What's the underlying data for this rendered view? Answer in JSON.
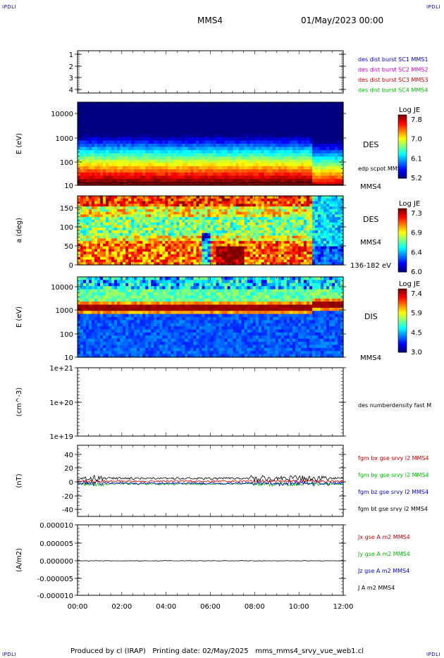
{
  "corners": {
    "tl": "IPDLI",
    "tr": "IPDLI",
    "bl": "IPDLI",
    "br": "IPDLI"
  },
  "header": {
    "mission": "MMS4",
    "date": "01/May/2023 00:00"
  },
  "footer": "Produced by cl (IRAP)   Printing date: 02/May/2025   mms_mms4_srvy_vue_web1.cl",
  "colors": {
    "mms1": "#0000cc",
    "mms2": "#cc00cc",
    "mms3": "#cc0000",
    "mms4": "#00bb00",
    "black": "#000000"
  },
  "chart_data": [
    {
      "id": "burst",
      "type": "line",
      "x_ticks": [],
      "ylim": [
        0.5,
        4.5
      ],
      "y_ticks": [
        "1",
        "2",
        "3",
        "4"
      ],
      "ylabel": "",
      "legend": [
        {
          "text": "des dist burst SC1 MMS1",
          "color": "#0000cc"
        },
        {
          "text": "des dist burst SC2 MMS2",
          "color": "#cc00cc"
        },
        {
          "text": "des dist burst SC3 MMS3",
          "color": "#cc0000"
        },
        {
          "text": "des dist burst SC4 MMS4",
          "color": "#00bb00"
        }
      ]
    },
    {
      "id": "des_energy",
      "type": "heatmap",
      "ylabel": "E (eV)",
      "yscale": "log",
      "ylim": [
        10,
        30000
      ],
      "y_ticks": [
        "10000",
        "1000",
        "100",
        "10"
      ],
      "right_labels": [
        "DES",
        "edp scpot MMS4",
        "MMS4"
      ],
      "colorbar": {
        "title": "Log JE",
        "ticks": [
          "7.8",
          "7.0",
          "6.1",
          "5.2"
        ]
      }
    },
    {
      "id": "des_pitch",
      "type": "heatmap",
      "ylabel": "a (deg)",
      "ylim": [
        0,
        180
      ],
      "y_ticks": [
        "150",
        "100",
        "50",
        "0"
      ],
      "right_labels": [
        "DES",
        "MMS4",
        "136-182 eV"
      ],
      "colorbar": {
        "title": "Log JE",
        "ticks": [
          "7.3",
          "6.9",
          "6.4",
          "6.0"
        ]
      }
    },
    {
      "id": "dis_energy",
      "type": "heatmap",
      "ylabel": "E (eV)",
      "yscale": "log",
      "ylim": [
        10,
        30000
      ],
      "y_ticks": [
        "10000",
        "1000",
        "100",
        "10"
      ],
      "right_labels": [
        "DIS",
        "MMS4"
      ],
      "colorbar": {
        "title": "Log JE",
        "ticks": [
          "7.4",
          "5.9",
          "4.5",
          "3.0"
        ]
      }
    },
    {
      "id": "density",
      "type": "line",
      "ylabel": "(cm^-3)",
      "yscale": "log",
      "y_ticks": [
        "1e+21",
        "1e+20",
        "1e+19"
      ],
      "legend": [
        {
          "text": "des numberdensity fast M",
          "color": "#000000"
        }
      ]
    },
    {
      "id": "fgm",
      "type": "line",
      "ylabel": "(nT)",
      "ylim": [
        -50,
        50
      ],
      "y_ticks": [
        "40",
        "20",
        "0",
        "-20",
        "-40"
      ],
      "legend": [
        {
          "text": "fgm bx gse srvy l2 MMS4",
          "color": "#cc0000"
        },
        {
          "text": "fgm by gse srvy l2 MMS4",
          "color": "#00bb00"
        },
        {
          "text": "fgm bz gse srvy l2 MMS4",
          "color": "#0000cc"
        },
        {
          "text": "fgm bt gse srvy l2 MMS4",
          "color": "#000000"
        }
      ]
    },
    {
      "id": "current",
      "type": "line",
      "ylabel": "(A/m2)",
      "ylim": [
        -1e-05,
        1e-05
      ],
      "y_ticks": [
        "0.000010",
        "0.000005",
        "0.000000",
        "-0.000005",
        "-0.000010"
      ],
      "legend": [
        {
          "text": "Jx gse A m2 MMS4",
          "color": "#cc0000"
        },
        {
          "text": "Jy gse A m2 MMS4",
          "color": "#00bb00"
        },
        {
          "text": "Jz gse A m2 MMS4",
          "color": "#0000cc"
        },
        {
          "text": "J A m2 MMS4",
          "color": "#000000"
        }
      ]
    }
  ],
  "x_axis": {
    "ticks": [
      "00:00",
      "02:00",
      "04:00",
      "06:00",
      "08:00",
      "10:00",
      "12:00"
    ]
  }
}
